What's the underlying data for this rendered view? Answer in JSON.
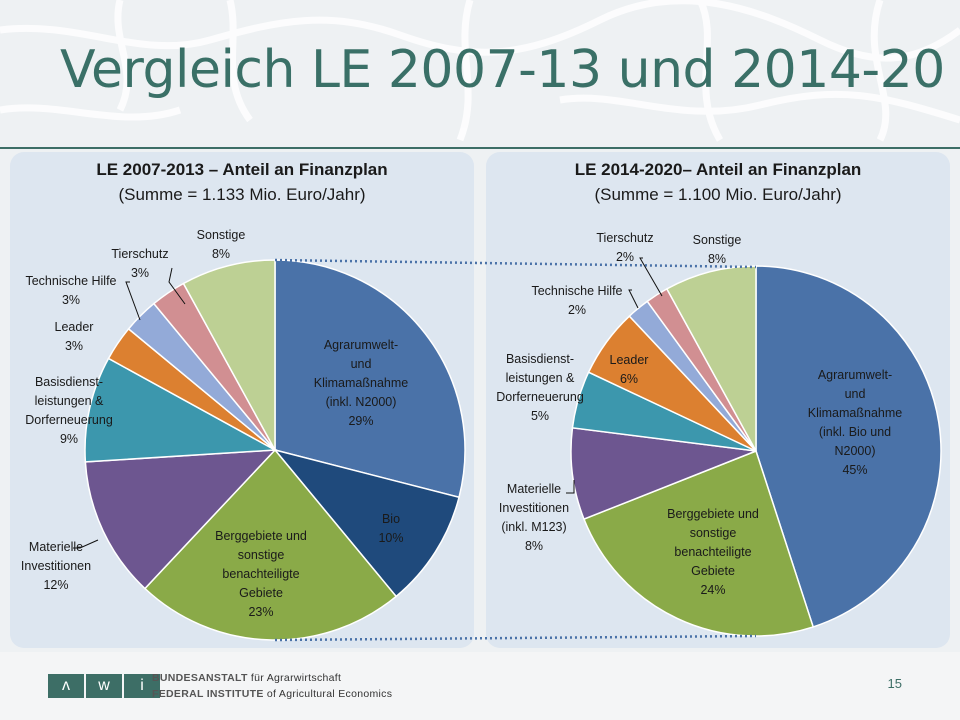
{
  "page": {
    "title": "Vergleich LE 2007-13 und 2014-20",
    "page_number": "15",
    "logo_letters": [
      "ʌ",
      "w",
      "i"
    ],
    "institute_line1_caps": "BUNDESANSTALT",
    "institute_line1_rest": "für Agrarwirtschaft",
    "institute_line2_caps": "FEDERAL INSTITUTE",
    "institute_line2_rest": "of Agricultural Economics"
  },
  "colors": {
    "title": "#3a7067",
    "agrar": "#4a72a8",
    "bio": "#1f4a7c",
    "berg": "#8aaa48",
    "materielle": "#6d5690",
    "basis": "#3c97ad",
    "leader": "#dc8030",
    "technische": "#93aad8",
    "tierschutz": "#d18f92",
    "sonstige": "#bdd094"
  },
  "chart_data": [
    {
      "type": "pie",
      "title": "LE 2007-2013   – Anteil an Finanzplan",
      "subtitle": "(Summe = 1.133 Mio. Euro/Jahr)",
      "slices": [
        {
          "key": "agrar",
          "label": "Agrarumwelt-\nund\nKlimamaßnahme\n(inkl. N2000)\n29%",
          "value": 29,
          "color": "#4a72a8"
        },
        {
          "key": "bio",
          "label": "Bio\n10%",
          "value": 10,
          "color": "#1f4a7c"
        },
        {
          "key": "berg",
          "label": "Berggebiete und\nsonstige\nbenachteiligte\nGebiete\n23%",
          "value": 23,
          "color": "#8aaa48"
        },
        {
          "key": "materielle",
          "label": "Materielle\nInvestitionen\n12%",
          "value": 12,
          "color": "#6d5690"
        },
        {
          "key": "basis",
          "label": "Basisdienst-\nleistungen &\nDorferneuerung\n9%",
          "value": 9,
          "color": "#3c97ad"
        },
        {
          "key": "leader",
          "label": "Leader\n3%",
          "value": 3,
          "color": "#dc8030"
        },
        {
          "key": "technische",
          "label": "Technische Hilfe\n3%",
          "value": 3,
          "color": "#93aad8"
        },
        {
          "key": "tierschutz",
          "label": "Tierschutz\n3%",
          "value": 3,
          "color": "#d18f92"
        },
        {
          "key": "sonstige",
          "label": "Sonstige\n8%",
          "value": 8,
          "color": "#bdd094"
        }
      ]
    },
    {
      "type": "pie",
      "title": "LE 2014-2020– Anteil an Finanzplan",
      "subtitle": "(Summe = 1.100 Mio. Euro/Jahr)",
      "slices": [
        {
          "key": "agrar",
          "label": "Agrarumwelt-\nund\nKlimamaßnahme\n(inkl. Bio und\nN2000)\n45%",
          "value": 45,
          "color": "#4a72a8"
        },
        {
          "key": "berg",
          "label": "Berggebiete und\nsonstige\nbenachteiligte\nGebiete\n24%",
          "value": 24,
          "color": "#8aaa48"
        },
        {
          "key": "materielle",
          "label": "Materielle\nInvestitionen\n(inkl. M123)\n8%",
          "value": 8,
          "color": "#6d5690"
        },
        {
          "key": "basis",
          "label": "Basisdienst-\nleistungen &\nDorferneuerung\n5%",
          "value": 5,
          "color": "#3c97ad"
        },
        {
          "key": "leader",
          "label": "Leader\n6%",
          "value": 6,
          "color": "#dc8030"
        },
        {
          "key": "technische",
          "label": "Technische Hilfe\n2%",
          "value": 2,
          "color": "#93aad8"
        },
        {
          "key": "tierschutz",
          "label": "Tierschutz\n2%",
          "value": 2,
          "color": "#d18f92"
        },
        {
          "key": "sonstige",
          "label": "Sonstige\n8%",
          "value": 8,
          "color": "#bdd094"
        }
      ]
    }
  ]
}
